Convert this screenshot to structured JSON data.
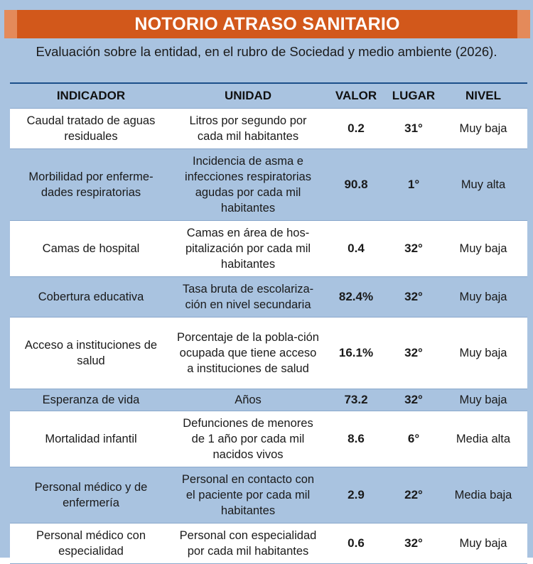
{
  "title": "NOTORIO ATRASO SANITARIO",
  "subtitle": "Evaluación sobre la entidad, en el rubro de Sociedad y medio ambiente (2026).",
  "colors": {
    "banner": "#d2581b",
    "banner_tab": "#e48a5a",
    "background_blue": "#a9c3e0",
    "row_light": "#ffffff"
  },
  "table": {
    "headers": [
      "INDICADOR",
      "UNIDAD",
      "VALOR",
      "LUGAR",
      "NIVEL"
    ],
    "rows": [
      {
        "indicator": "Caudal tratado de aguas residuales",
        "unit": "Litros por segundo por cada mil habitantes",
        "value": "0.2",
        "place": "31°",
        "level": "Muy baja"
      },
      {
        "indicator": "Morbilidad por enferme-dades respiratorias",
        "unit": "Incidencia de asma e infecciones respiratorias agudas por cada mil habitantes",
        "value": "90.8",
        "place": "1°",
        "level": "Muy alta"
      },
      {
        "indicator": "Camas de hospital",
        "unit": "Camas en área de hos-pitalización por cada mil habitantes",
        "value": "0.4",
        "place": "32°",
        "level": "Muy baja"
      },
      {
        "indicator": "Cobertura educativa",
        "unit": "Tasa bruta de escolariza-ción en nivel secundaria",
        "value": "82.4%",
        "place": "32°",
        "level": "Muy baja"
      },
      {
        "indicator": "Acceso a instituciones de salud",
        "unit": "Porcentaje de la pobla-ción ocupada que tiene acceso a instituciones de salud",
        "value": "16.1%",
        "place": "32°",
        "level": "Muy baja"
      },
      {
        "indicator": "Esperanza de vida",
        "unit": "Años",
        "value": "73.2",
        "place": "32°",
        "level": "Muy baja"
      },
      {
        "indicator": "Mortalidad infantil",
        "unit": "Defunciones de menores de 1 año por cada mil nacidos vivos",
        "value": "8.6",
        "place": "6°",
        "level": "Media alta"
      },
      {
        "indicator": "Personal médico y de enfermería",
        "unit": "Personal en contacto con el paciente por cada mil habitantes",
        "value": "2.9",
        "place": "22°",
        "level": "Media baja"
      },
      {
        "indicator": "Personal médico con especialidad",
        "unit": "Personal con especialidad por cada mil habitantes",
        "value": "0.6",
        "place": "32°",
        "level": "Muy baja"
      }
    ]
  }
}
